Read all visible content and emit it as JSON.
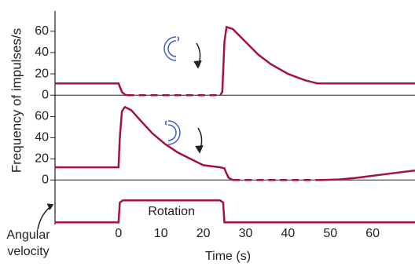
{
  "chart_data": [
    {
      "type": "line",
      "ylabel": "Frequency of impulses/s",
      "xlim": [
        -15,
        70
      ],
      "ylim": [
        -5,
        79
      ],
      "yticks": [
        0,
        20,
        40,
        60
      ],
      "color": "#a3123f",
      "series": [
        {
          "x": [
            -15,
            0,
            0.2,
            0.8,
            1.5,
            2,
            12,
            24,
            24.5,
            25,
            25.5,
            27,
            30,
            33,
            36,
            40,
            44,
            47,
            50,
            70
          ],
          "values": [
            11,
            11,
            9,
            3,
            0.5,
            0,
            null,
            0,
            3,
            50,
            64,
            62,
            50,
            38,
            29,
            20,
            14,
            11,
            11,
            11
          ]
        },
        {
          "x": [
            2,
            24
          ],
          "values": [
            0,
            0
          ],
          "dashed": true
        }
      ]
    },
    {
      "type": "line",
      "xlim": [
        -15,
        70
      ],
      "ylim": [
        -5,
        67
      ],
      "yticks": [
        0,
        20,
        40,
        60
      ],
      "color": "#a3123f",
      "series": [
        {
          "x": [
            -15,
            0,
            0.3,
            0.8,
            1.5,
            3,
            5,
            8,
            11,
            14,
            17,
            20,
            24,
            25,
            25.4,
            26,
            27,
            38,
            48,
            52,
            56,
            60,
            64,
            70
          ],
          "values": [
            12,
            12,
            40,
            65,
            69,
            66,
            57,
            44,
            34,
            26,
            20,
            14,
            12,
            11,
            7,
            2,
            0,
            null,
            0,
            0.5,
            2,
            4,
            6,
            9
          ]
        },
        {
          "x": [
            27,
            48
          ],
          "values": [
            0,
            0
          ],
          "dashed": true
        }
      ]
    },
    {
      "type": "line",
      "xlim": [
        -15,
        70
      ],
      "ylim": [
        -0.1,
        1.4
      ],
      "xticks": [
        0,
        10,
        20,
        30,
        40,
        50,
        60
      ],
      "xlabel": "Time (s)",
      "label": "Angular velocity",
      "annotation": "Rotation",
      "color": "#a3123f",
      "series": [
        {
          "x": [
            -15,
            0,
            0.3,
            1,
            24,
            24.7,
            25,
            70
          ],
          "values": [
            0,
            0,
            0.9,
            1,
            1,
            0.9,
            0,
            0
          ]
        }
      ]
    }
  ]
}
